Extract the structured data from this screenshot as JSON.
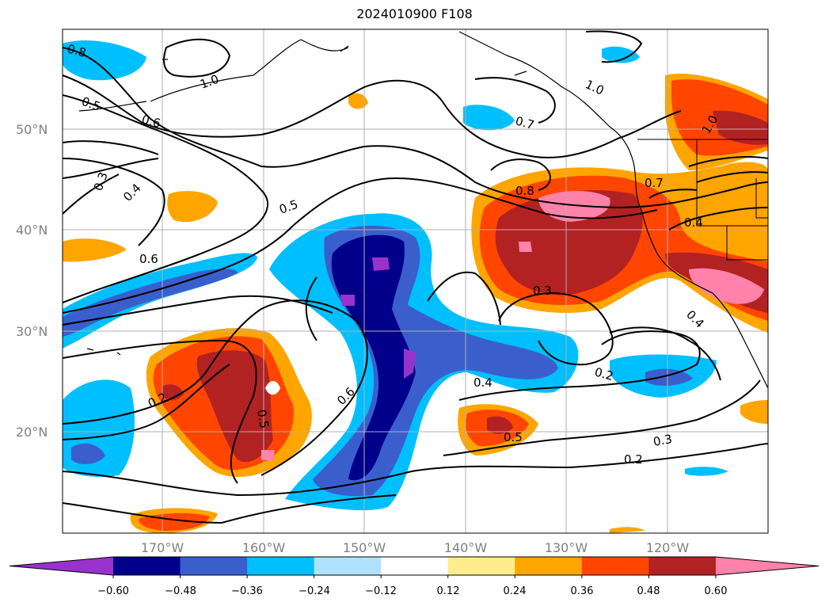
{
  "title": "2024010900 F108",
  "map": {
    "lat_labels": [
      "50°N",
      "40°N",
      "30°N",
      "20°N"
    ],
    "lon_labels": [
      "170°W",
      "160°W",
      "150°W",
      "140°W",
      "130°W",
      "120°W"
    ],
    "gridlines": true
  },
  "contour_labels": [
    "0.8",
    "1.0",
    "0.5",
    "0.6",
    "0.3",
    "0.4",
    "0.6",
    "0.5",
    "1.0",
    "0.7",
    "0.7",
    "0.8",
    "1.0",
    "0.4",
    "0.4",
    "0.3",
    "0.2",
    "0.2",
    "0.6",
    "0.5",
    "0.4",
    "0.5",
    "0.3",
    "0.2"
  ],
  "colorbar": {
    "ticks": [
      "−0.60",
      "−0.48",
      "−0.36",
      "−0.24",
      "−0.12",
      "0.12",
      "0.24",
      "0.36",
      "0.48",
      "0.60"
    ],
    "colors": [
      "#9932cc",
      "#00008b",
      "#3a5fcd",
      "#00bfff",
      "#b0e2ff",
      "#ffffff",
      "#ffec8b",
      "#ffa500",
      "#ff4500",
      "#b22222",
      "#ff82ab"
    ]
  }
}
